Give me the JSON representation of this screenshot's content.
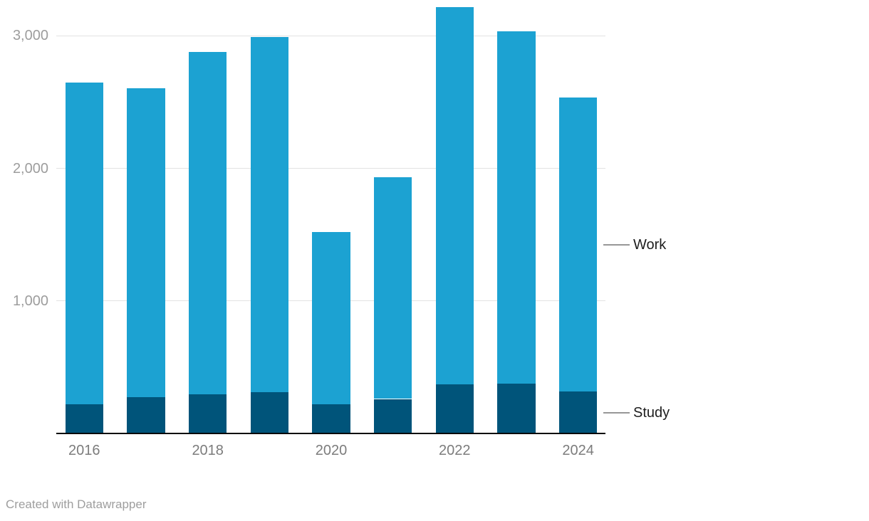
{
  "chart_data": {
    "type": "bar",
    "stacked": true,
    "orientation": "vertical",
    "title": "",
    "categories": [
      "2016",
      "2017",
      "2018",
      "2019",
      "2020",
      "2021",
      "2022",
      "2023",
      "2024"
    ],
    "series": [
      {
        "name": "Study",
        "color": "#00547A",
        "values": [
          220,
          275,
          295,
          310,
          220,
          260,
          370,
          375,
          315
        ]
      },
      {
        "name": "Work",
        "color": "#1CA2D2",
        "values": [
          2430,
          2330,
          2585,
          2680,
          1300,
          1675,
          2845,
          2660,
          2220
        ]
      }
    ],
    "totals": [
      2650,
      2605,
      2880,
      2990,
      1520,
      1935,
      3215,
      3035,
      2535
    ],
    "y_axis": {
      "max": 3270,
      "min": 0,
      "ticks": [
        {
          "value": 1000,
          "label": "1,000"
        },
        {
          "value": 2000,
          "label": "2,000"
        },
        {
          "value": 3000,
          "label": "3,000"
        }
      ]
    },
    "x_axis": {
      "tick_labels": [
        "2016",
        "2018",
        "2020",
        "2022",
        "2024"
      ],
      "tick_category_indices": [
        0,
        2,
        4,
        6,
        8
      ]
    },
    "grid": true,
    "legend": {
      "position": "right-direct-labels",
      "items": [
        {
          "label": "Work",
          "series": "Work"
        },
        {
          "label": "Study",
          "series": "Study"
        }
      ]
    }
  },
  "colors": {
    "work": "#1CA2D2",
    "study": "#00547A",
    "gridline": "#e3e3e3",
    "axis_line": "#0a0a0a",
    "y_label": "#9d9d9d",
    "x_label": "#7c7c7c",
    "legend_text": "#1d1d1d"
  },
  "footer": {
    "credit": "Created with Datawrapper"
  }
}
